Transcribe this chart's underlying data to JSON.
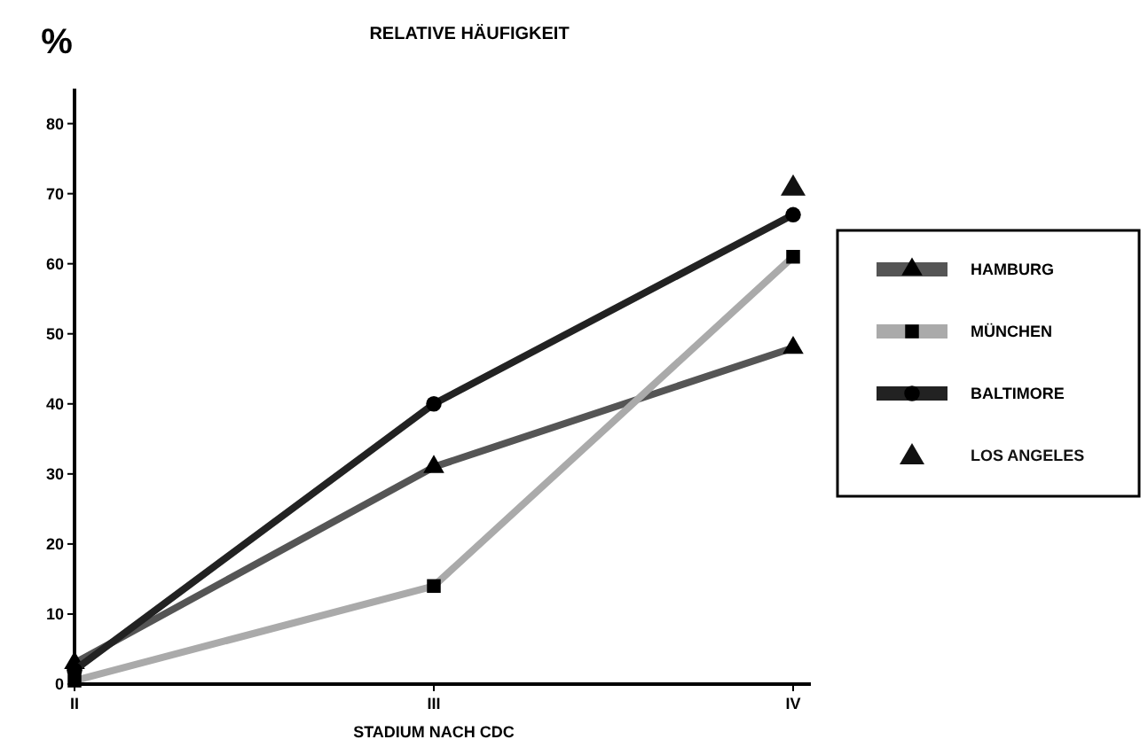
{
  "chart_data": {
    "type": "line",
    "title": "RELATIVE HÄUFIGKEIT",
    "xlabel": "STADIUM NACH CDC",
    "ylabel": "%",
    "categories": [
      "II",
      "III",
      "IV"
    ],
    "ylim": [
      0,
      85
    ],
    "yticks": [
      0,
      10,
      20,
      30,
      40,
      50,
      60,
      70,
      80
    ],
    "grid": false,
    "legend": "right",
    "series": [
      {
        "name": "HAMBURG",
        "color": "#555555",
        "marker": "triangle",
        "values": [
          3,
          31,
          48
        ]
      },
      {
        "name": "MÜNCHEN",
        "color": "#aaaaaa",
        "marker": "square",
        "values": [
          0.5,
          14,
          61
        ]
      },
      {
        "name": "BALTIMORE",
        "color": "#222222",
        "marker": "circle",
        "values": [
          2,
          40,
          67
        ]
      },
      {
        "name": "LOS ANGELES",
        "type": "scatter",
        "color": "#111111",
        "marker": "triangle",
        "values": [
          null,
          null,
          71
        ]
      }
    ]
  }
}
